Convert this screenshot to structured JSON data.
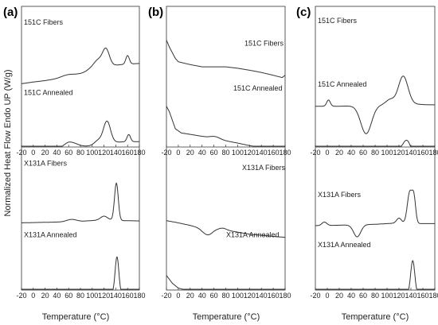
{
  "y_axis_label": "Normalized Heat Flow Endo UP (W/g)",
  "chart_data": [
    {
      "panel_label": "(a)",
      "type": "line",
      "xlabel": "Temperature (°C)",
      "xlim": [
        -20,
        180
      ],
      "xticks": [
        "-20",
        "0",
        "20",
        "40",
        "60",
        "80",
        "100",
        "120",
        "140",
        "160",
        "180"
      ],
      "series": [
        {
          "name": "151C Fibers",
          "color": "#333333",
          "subplot": "top",
          "y_offset": 0.2,
          "amp": 0.2,
          "baseline": [
            [
              -20,
              0.0
            ],
            [
              0,
              0.06
            ],
            [
              20,
              0.11
            ],
            [
              40,
              0.18
            ],
            [
              60,
              0.28
            ],
            [
              80,
              0.36
            ],
            [
              100,
              0.48
            ],
            [
              120,
              0.58
            ],
            [
              140,
              0.66
            ],
            [
              160,
              0.7
            ],
            [
              180,
              0.72
            ]
          ],
          "peaks": [
            [
              57,
              0.05,
              10
            ],
            [
              102,
              0.12,
              8
            ],
            [
              110,
              0.22,
              6
            ],
            [
              123,
              0.65,
              6
            ],
            [
              160,
              0.3,
              3
            ]
          ]
        },
        {
          "name": "151C Annealed",
          "color": "#333333",
          "subplot": "top",
          "y_offset": 0.72,
          "amp": 0.18,
          "baseline": [
            [
              -20,
              -0.4
            ],
            [
              0,
              -0.1
            ],
            [
              20,
              0.0
            ],
            [
              40,
              0.12
            ],
            [
              60,
              0.28
            ],
            [
              80,
              0.35
            ],
            [
              100,
              0.45
            ],
            [
              120,
              0.55
            ],
            [
              140,
              0.58
            ],
            [
              160,
              0.6
            ],
            [
              180,
              0.6
            ]
          ],
          "peaks": [
            [
              60,
              0.3,
              14
            ],
            [
              110,
              0.15,
              6
            ],
            [
              125,
              0.85,
              6
            ],
            [
              162,
              0.28,
              3
            ]
          ]
        },
        {
          "name": "X131A Fibers",
          "color": "#333333",
          "subplot": "bottom",
          "y_offset": 0.18,
          "amp": 0.26,
          "baseline": [
            [
              -20,
              0.0
            ],
            [
              40,
              0.02
            ],
            [
              80,
              0.04
            ],
            [
              120,
              0.08
            ],
            [
              150,
              0.06
            ],
            [
              180,
              0.05
            ]
          ],
          "peaks": [
            [
              65,
              0.06,
              8
            ],
            [
              120,
              0.1,
              6
            ],
            [
              141,
              1.0,
              3.2
            ]
          ]
        },
        {
          "name": "X131A Annealed",
          "color": "#333333",
          "subplot": "bottom",
          "y_offset": 0.69,
          "amp": 0.26,
          "baseline": [
            [
              -20,
              0.04
            ],
            [
              40,
              0.02
            ],
            [
              80,
              0.03
            ],
            [
              120,
              0.06
            ],
            [
              150,
              0.04
            ],
            [
              180,
              0.03
            ]
          ],
          "peaks": [
            [
              65,
              0.05,
              8
            ],
            [
              122,
              0.12,
              5
            ],
            [
              142,
              1.0,
              3.2
            ]
          ]
        }
      ]
    },
    {
      "panel_label": "(b)",
      "type": "line",
      "xlabel": "Temperature (°C)",
      "xlim": [
        -20,
        180
      ],
      "xticks": [
        "-20",
        "0",
        "20",
        "40",
        "60",
        "80",
        "100",
        "120",
        "140",
        "160",
        "180"
      ],
      "series": [
        {
          "name": "151C Fibers",
          "color": "#333333",
          "subplot": "top",
          "y_offset": 0.08,
          "amp": 0.2,
          "baseline": [
            [
              -20,
              0.95
            ],
            [
              -15,
              0.7
            ],
            [
              -5,
              0.3
            ],
            [
              0,
              0.18
            ],
            [
              20,
              0.08
            ],
            [
              40,
              0.0
            ],
            [
              60,
              0.0
            ],
            [
              80,
              0.0
            ],
            [
              100,
              -0.05
            ],
            [
              120,
              -0.12
            ],
            [
              140,
              -0.2
            ],
            [
              160,
              -0.3
            ],
            [
              175,
              -0.38
            ],
            [
              180,
              -0.3
            ]
          ],
          "peaks": []
        },
        {
          "name": "151C Annealed",
          "color": "#333333",
          "subplot": "top",
          "y_offset": 0.55,
          "amp": 0.2,
          "baseline": [
            [
              -20,
              0.95
            ],
            [
              -15,
              0.75
            ],
            [
              -5,
              0.15
            ],
            [
              5,
              0.0
            ],
            [
              20,
              -0.05
            ],
            [
              40,
              -0.12
            ],
            [
              60,
              -0.2
            ],
            [
              80,
              -0.28
            ],
            [
              100,
              -0.36
            ],
            [
              120,
              -0.45
            ],
            [
              140,
              -0.52
            ],
            [
              160,
              -0.6
            ],
            [
              180,
              -0.68
            ]
          ],
          "peaks": [
            [
              62,
              0.08,
              8
            ]
          ]
        },
        {
          "name": "X131A Fibers",
          "color": "#333333",
          "subplot": "bottom",
          "y_offset": 0.22,
          "amp": 0.22,
          "baseline": [
            [
              -20,
              0.25
            ],
            [
              -5,
              0.2
            ],
            [
              20,
              0.1
            ],
            [
              40,
              0.0
            ],
            [
              60,
              0.0
            ],
            [
              80,
              -0.05
            ],
            [
              120,
              -0.18
            ],
            [
              160,
              -0.25
            ],
            [
              180,
              -0.28
            ]
          ],
          "peaks": [
            [
              50,
              -0.2,
              8
            ],
            [
              75,
              0.05,
              6
            ]
          ]
        },
        {
          "name": "X131A Annealed",
          "color": "#333333",
          "subplot": "bottom",
          "y_offset": 0.68,
          "amp": 0.22,
          "baseline": [
            [
              -20,
              0.6
            ],
            [
              -10,
              0.35
            ],
            [
              0,
              0.2
            ],
            [
              20,
              0.1
            ],
            [
              40,
              0.0
            ],
            [
              60,
              -0.05
            ],
            [
              80,
              -0.1
            ],
            [
              100,
              -0.15
            ],
            [
              140,
              -0.2
            ],
            [
              180,
              -0.25
            ]
          ],
          "peaks": [
            [
              55,
              -1.0,
              5
            ]
          ]
        }
      ]
    },
    {
      "panel_label": "(c)",
      "type": "line",
      "xlabel": "Temperature (°C)",
      "xlim": [
        -20,
        180
      ],
      "xticks": [
        "-20",
        "0",
        "20",
        "40",
        "60",
        "80",
        "100",
        "120",
        "140",
        "160",
        "180"
      ],
      "series": [
        {
          "name": "151C Fibers",
          "color": "#333333",
          "subplot": "top",
          "y_offset": 0.36,
          "amp": 0.2,
          "baseline": [
            [
              -20,
              0.0
            ],
            [
              0,
              0.0
            ],
            [
              20,
              0.0
            ],
            [
              60,
              0.02
            ],
            [
              100,
              0.05
            ],
            [
              140,
              0.08
            ],
            [
              170,
              0.05
            ],
            [
              180,
              0.05
            ]
          ],
          "peaks": [
            [
              2,
              0.22,
              3
            ],
            [
              65,
              -1.0,
              9
            ],
            [
              105,
              0.18,
              7
            ],
            [
              127,
              1.0,
              8
            ]
          ]
        },
        {
          "name": "151C Annealed",
          "color": "#333333",
          "subplot": "top",
          "y_offset": 0.78,
          "amp": 0.2,
          "baseline": [
            [
              -20,
              0.0
            ],
            [
              0,
              0.02
            ],
            [
              20,
              0.02
            ],
            [
              60,
              0.02
            ],
            [
              100,
              0.06
            ],
            [
              140,
              0.08
            ],
            [
              160,
              0.06
            ],
            [
              180,
              0.04
            ]
          ],
          "peaks": [
            [
              3,
              0.3,
              3
            ],
            [
              70,
              -1.0,
              9
            ],
            [
              118,
              0.3,
              6
            ],
            [
              133,
              0.8,
              8
            ],
            [
              160,
              0.2,
              4
            ]
          ]
        },
        {
          "name": "X131A Fibers",
          "color": "#333333",
          "subplot": "bottom",
          "y_offset": 0.2,
          "amp": 0.24,
          "baseline": [
            [
              -20,
              0.0
            ],
            [
              40,
              0.02
            ],
            [
              80,
              0.04
            ],
            [
              120,
              0.08
            ],
            [
              150,
              0.06
            ],
            [
              180,
              0.06
            ]
          ],
          "peaks": [
            [
              -5,
              0.1,
              4
            ],
            [
              50,
              -0.35,
              6
            ],
            [
              120,
              0.14,
              4
            ],
            [
              138,
              0.9,
              4
            ],
            [
              145,
              0.7,
              3
            ]
          ]
        },
        {
          "name": "X131A Annealed",
          "color": "#333333",
          "subplot": "bottom",
          "y_offset": 0.7,
          "amp": 0.24,
          "baseline": [
            [
              -20,
              0.06
            ],
            [
              40,
              0.04
            ],
            [
              80,
              0.05
            ],
            [
              120,
              0.08
            ],
            [
              150,
              0.06
            ],
            [
              180,
              0.05
            ]
          ],
          "peaks": [
            [
              52,
              -0.22,
              6
            ],
            [
              125,
              0.14,
              4
            ],
            [
              143,
              1.0,
              3.5
            ]
          ]
        }
      ]
    }
  ]
}
